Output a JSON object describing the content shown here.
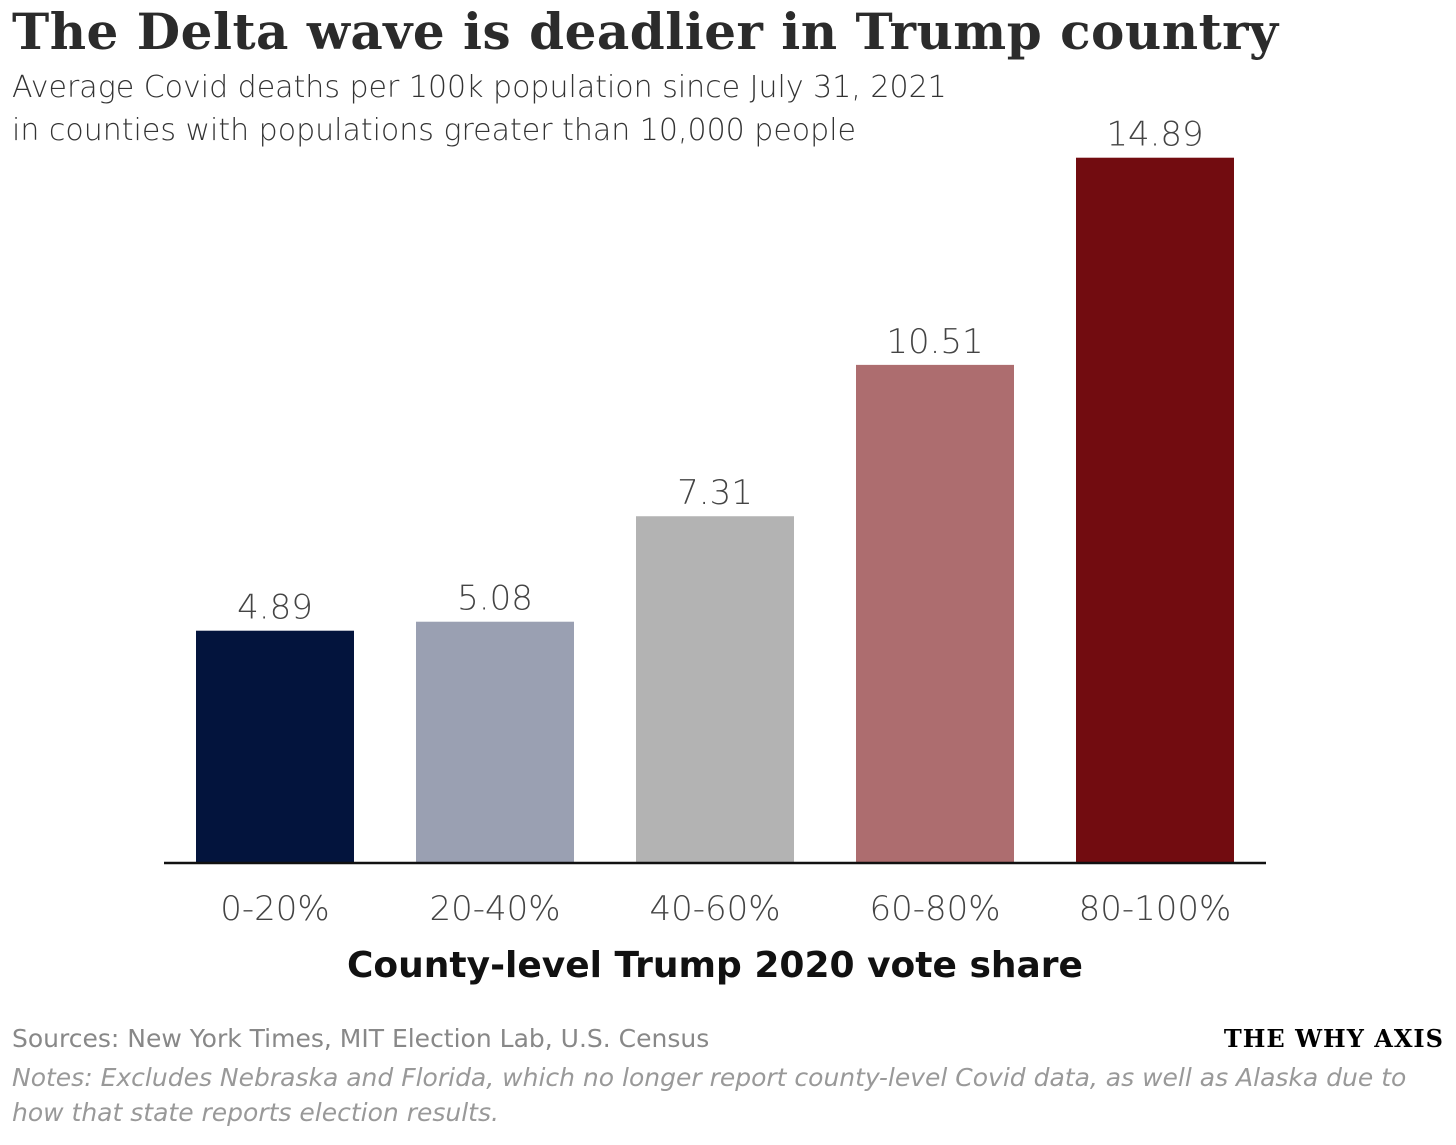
{
  "chart_data": {
    "type": "bar",
    "title": "The Delta wave is deadlier in Trump country",
    "subtitle": [
      "Average Covid deaths per 100k population since July 31, 2021",
      "in counties with populations greater than 10,000 people"
    ],
    "categories": [
      "0-20%",
      "20-40%",
      "40-60%",
      "60-80%",
      "80-100%"
    ],
    "values": [
      4.89,
      5.08,
      7.31,
      10.51,
      14.89
    ],
    "value_labels": [
      "4.89",
      "5.08",
      "7.31",
      "10.51",
      "14.89"
    ],
    "colors": [
      "#03143d",
      "#9aa0b2",
      "#b3b3b3",
      "#ad6d6f",
      "#720c10"
    ],
    "xlabel": "County-level Trump 2020 vote share",
    "ylabel": "",
    "ylim": [
      0,
      15
    ],
    "grid": false
  },
  "footer": {
    "sources": "Sources: New York Times, MIT Election Lab, U.S. Census",
    "notes": "Notes: Excludes Nebraska and Florida, which no longer report county-level Covid data, as well as Alaska due to how that state reports election results.",
    "brand": "THE WHY AXIS"
  }
}
